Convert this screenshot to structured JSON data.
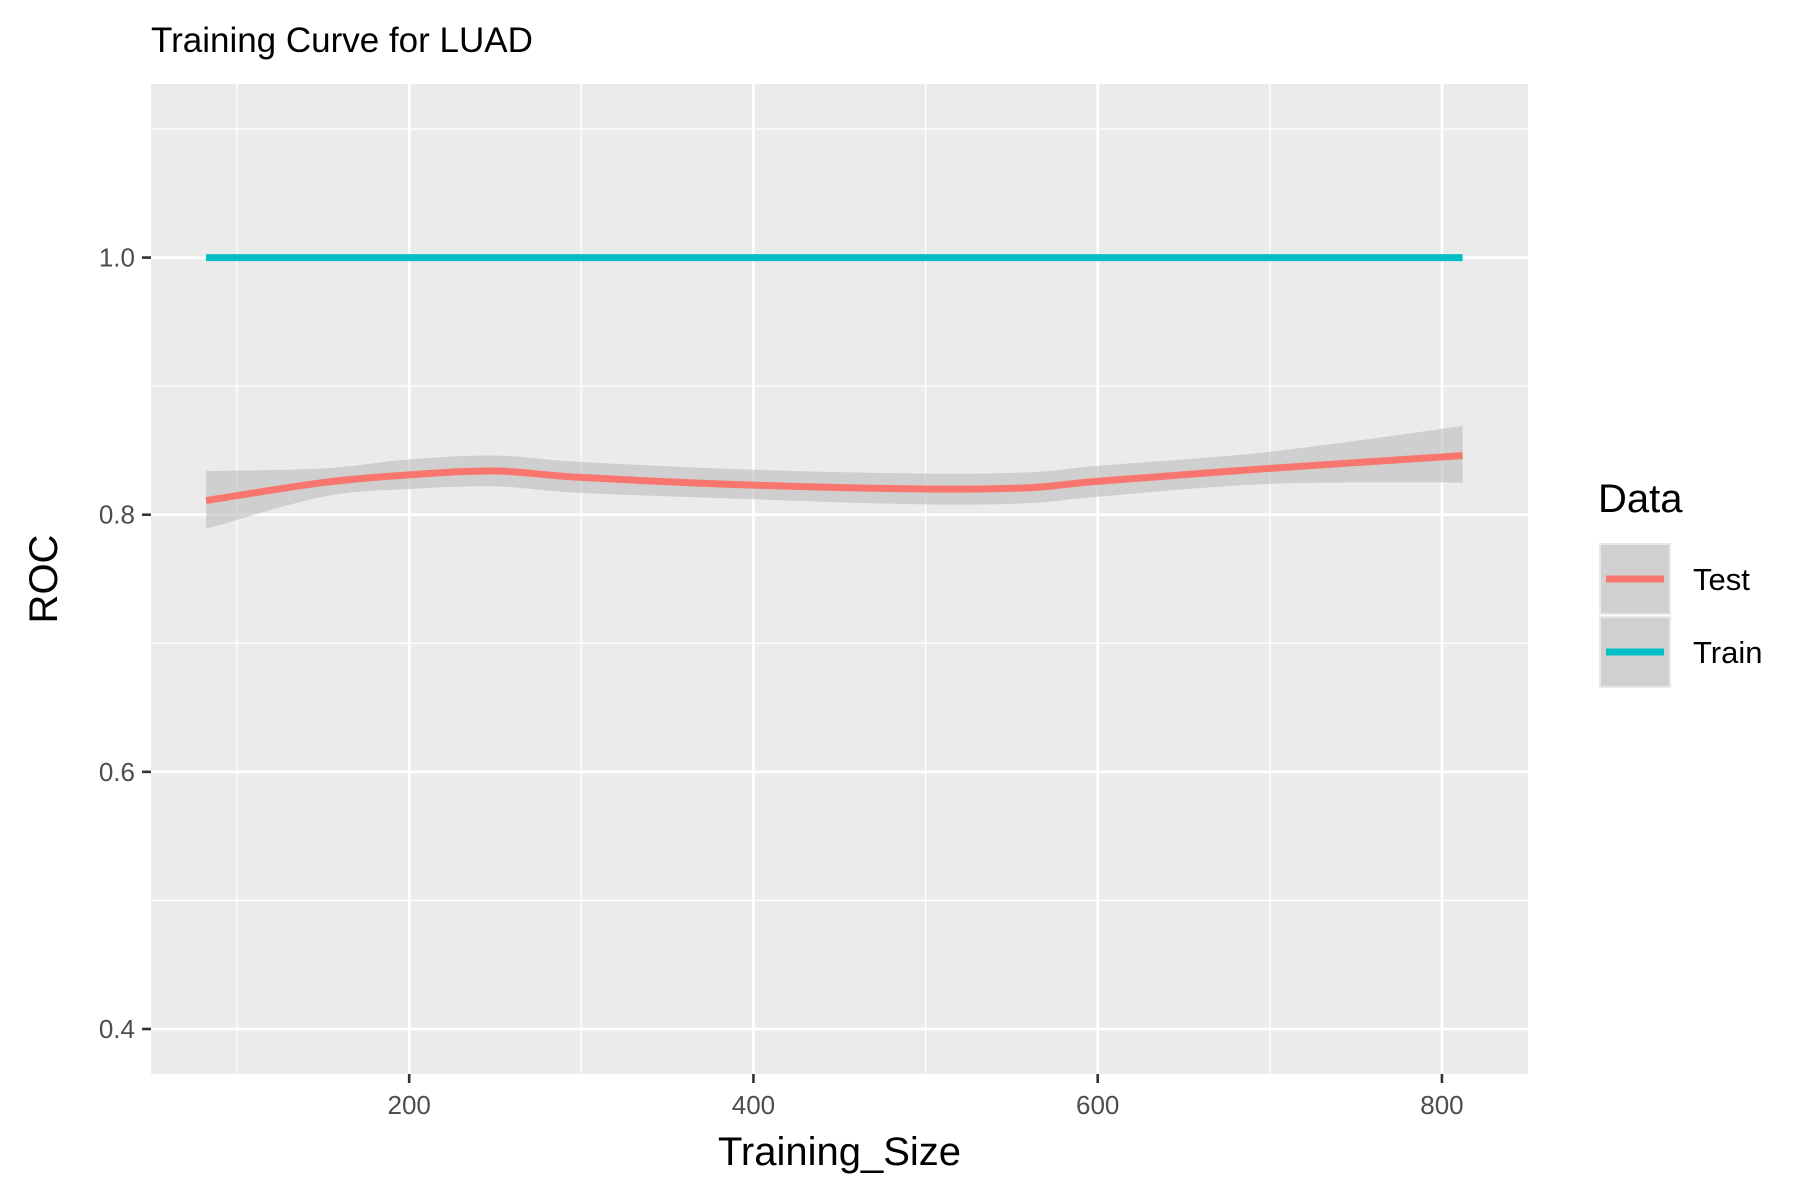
{
  "chart_data": {
    "type": "line",
    "title": "Training Curve for LUAD",
    "xlabel": "Training_Size",
    "ylabel": "ROC",
    "xlim": [
      50,
      850
    ],
    "ylim": [
      0.365,
      1.135
    ],
    "x_major_ticks": [
      200,
      400,
      600,
      800
    ],
    "x_major_tick_labels": [
      "200",
      "400",
      "600",
      "800"
    ],
    "x_minor_ticks": [
      100,
      300,
      500,
      700
    ],
    "y_major_ticks": [
      0.4,
      0.6,
      0.8,
      1.0
    ],
    "y_major_tick_labels": [
      "0.4",
      "0.6",
      "0.8",
      "1.0"
    ],
    "y_minor_ticks": [
      0.5,
      0.7,
      0.9,
      1.1
    ],
    "grid": true,
    "legend": {
      "title": "Data",
      "position": "right"
    },
    "series": [
      {
        "name": "Test",
        "color": "#F8766D",
        "x": [
          82,
          150,
          200,
          250,
          300,
          400,
          500,
          560,
          600,
          700,
          812
        ],
        "y": [
          0.811,
          0.825,
          0.831,
          0.834,
          0.829,
          0.823,
          0.82,
          0.821,
          0.826,
          0.836,
          0.846
        ],
        "ci_lower": [
          0.789,
          0.814,
          0.82,
          0.822,
          0.817,
          0.812,
          0.808,
          0.809,
          0.814,
          0.824,
          0.825
        ],
        "ci_upper": [
          0.834,
          0.836,
          0.843,
          0.846,
          0.841,
          0.835,
          0.832,
          0.833,
          0.838,
          0.849,
          0.869
        ]
      },
      {
        "name": "Train",
        "color": "#00BFC4",
        "x": [
          82,
          812
        ],
        "y": [
          1.0,
          1.0
        ]
      }
    ]
  }
}
